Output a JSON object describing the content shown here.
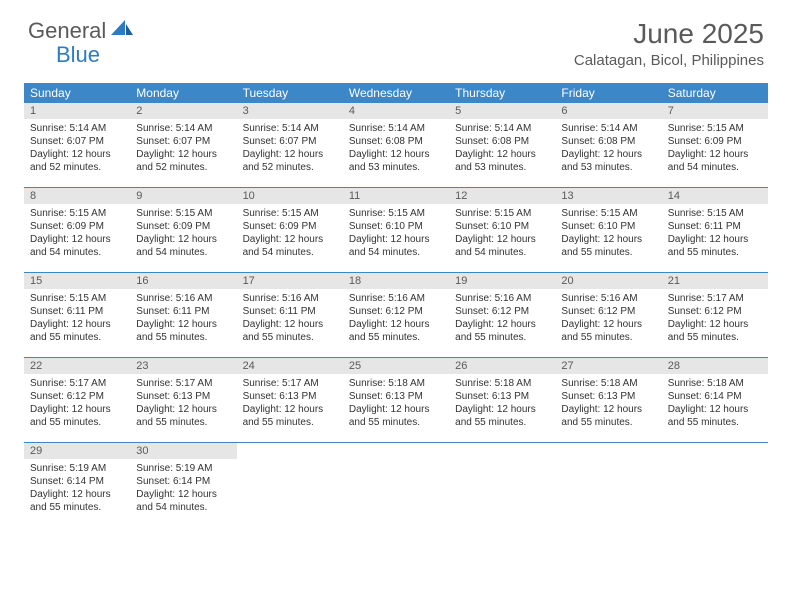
{
  "brand": {
    "part1": "General",
    "part2": "Blue"
  },
  "title": "June 2025",
  "location": "Calatagan, Bicol, Philippines",
  "colors": {
    "header_bg": "#3b87c8",
    "header_text": "#ffffff",
    "daynum_bg": "#e6e6e6",
    "text_gray": "#5a5a5a",
    "brand_blue": "#2f7bbf",
    "row_border": "#3b87c8"
  },
  "day_names": [
    "Sunday",
    "Monday",
    "Tuesday",
    "Wednesday",
    "Thursday",
    "Friday",
    "Saturday"
  ],
  "days": [
    {
      "n": "1",
      "sr": "Sunrise: 5:14 AM",
      "ss": "Sunset: 6:07 PM",
      "d1": "Daylight: 12 hours",
      "d2": "and 52 minutes."
    },
    {
      "n": "2",
      "sr": "Sunrise: 5:14 AM",
      "ss": "Sunset: 6:07 PM",
      "d1": "Daylight: 12 hours",
      "d2": "and 52 minutes."
    },
    {
      "n": "3",
      "sr": "Sunrise: 5:14 AM",
      "ss": "Sunset: 6:07 PM",
      "d1": "Daylight: 12 hours",
      "d2": "and 52 minutes."
    },
    {
      "n": "4",
      "sr": "Sunrise: 5:14 AM",
      "ss": "Sunset: 6:08 PM",
      "d1": "Daylight: 12 hours",
      "d2": "and 53 minutes."
    },
    {
      "n": "5",
      "sr": "Sunrise: 5:14 AM",
      "ss": "Sunset: 6:08 PM",
      "d1": "Daylight: 12 hours",
      "d2": "and 53 minutes."
    },
    {
      "n": "6",
      "sr": "Sunrise: 5:14 AM",
      "ss": "Sunset: 6:08 PM",
      "d1": "Daylight: 12 hours",
      "d2": "and 53 minutes."
    },
    {
      "n": "7",
      "sr": "Sunrise: 5:15 AM",
      "ss": "Sunset: 6:09 PM",
      "d1": "Daylight: 12 hours",
      "d2": "and 54 minutes."
    },
    {
      "n": "8",
      "sr": "Sunrise: 5:15 AM",
      "ss": "Sunset: 6:09 PM",
      "d1": "Daylight: 12 hours",
      "d2": "and 54 minutes."
    },
    {
      "n": "9",
      "sr": "Sunrise: 5:15 AM",
      "ss": "Sunset: 6:09 PM",
      "d1": "Daylight: 12 hours",
      "d2": "and 54 minutes."
    },
    {
      "n": "10",
      "sr": "Sunrise: 5:15 AM",
      "ss": "Sunset: 6:09 PM",
      "d1": "Daylight: 12 hours",
      "d2": "and 54 minutes."
    },
    {
      "n": "11",
      "sr": "Sunrise: 5:15 AM",
      "ss": "Sunset: 6:10 PM",
      "d1": "Daylight: 12 hours",
      "d2": "and 54 minutes."
    },
    {
      "n": "12",
      "sr": "Sunrise: 5:15 AM",
      "ss": "Sunset: 6:10 PM",
      "d1": "Daylight: 12 hours",
      "d2": "and 54 minutes."
    },
    {
      "n": "13",
      "sr": "Sunrise: 5:15 AM",
      "ss": "Sunset: 6:10 PM",
      "d1": "Daylight: 12 hours",
      "d2": "and 55 minutes."
    },
    {
      "n": "14",
      "sr": "Sunrise: 5:15 AM",
      "ss": "Sunset: 6:11 PM",
      "d1": "Daylight: 12 hours",
      "d2": "and 55 minutes."
    },
    {
      "n": "15",
      "sr": "Sunrise: 5:15 AM",
      "ss": "Sunset: 6:11 PM",
      "d1": "Daylight: 12 hours",
      "d2": "and 55 minutes."
    },
    {
      "n": "16",
      "sr": "Sunrise: 5:16 AM",
      "ss": "Sunset: 6:11 PM",
      "d1": "Daylight: 12 hours",
      "d2": "and 55 minutes."
    },
    {
      "n": "17",
      "sr": "Sunrise: 5:16 AM",
      "ss": "Sunset: 6:11 PM",
      "d1": "Daylight: 12 hours",
      "d2": "and 55 minutes."
    },
    {
      "n": "18",
      "sr": "Sunrise: 5:16 AM",
      "ss": "Sunset: 6:12 PM",
      "d1": "Daylight: 12 hours",
      "d2": "and 55 minutes."
    },
    {
      "n": "19",
      "sr": "Sunrise: 5:16 AM",
      "ss": "Sunset: 6:12 PM",
      "d1": "Daylight: 12 hours",
      "d2": "and 55 minutes."
    },
    {
      "n": "20",
      "sr": "Sunrise: 5:16 AM",
      "ss": "Sunset: 6:12 PM",
      "d1": "Daylight: 12 hours",
      "d2": "and 55 minutes."
    },
    {
      "n": "21",
      "sr": "Sunrise: 5:17 AM",
      "ss": "Sunset: 6:12 PM",
      "d1": "Daylight: 12 hours",
      "d2": "and 55 minutes."
    },
    {
      "n": "22",
      "sr": "Sunrise: 5:17 AM",
      "ss": "Sunset: 6:12 PM",
      "d1": "Daylight: 12 hours",
      "d2": "and 55 minutes."
    },
    {
      "n": "23",
      "sr": "Sunrise: 5:17 AM",
      "ss": "Sunset: 6:13 PM",
      "d1": "Daylight: 12 hours",
      "d2": "and 55 minutes."
    },
    {
      "n": "24",
      "sr": "Sunrise: 5:17 AM",
      "ss": "Sunset: 6:13 PM",
      "d1": "Daylight: 12 hours",
      "d2": "and 55 minutes."
    },
    {
      "n": "25",
      "sr": "Sunrise: 5:18 AM",
      "ss": "Sunset: 6:13 PM",
      "d1": "Daylight: 12 hours",
      "d2": "and 55 minutes."
    },
    {
      "n": "26",
      "sr": "Sunrise: 5:18 AM",
      "ss": "Sunset: 6:13 PM",
      "d1": "Daylight: 12 hours",
      "d2": "and 55 minutes."
    },
    {
      "n": "27",
      "sr": "Sunrise: 5:18 AM",
      "ss": "Sunset: 6:13 PM",
      "d1": "Daylight: 12 hours",
      "d2": "and 55 minutes."
    },
    {
      "n": "28",
      "sr": "Sunrise: 5:18 AM",
      "ss": "Sunset: 6:14 PM",
      "d1": "Daylight: 12 hours",
      "d2": "and 55 minutes."
    },
    {
      "n": "29",
      "sr": "Sunrise: 5:19 AM",
      "ss": "Sunset: 6:14 PM",
      "d1": "Daylight: 12 hours",
      "d2": "and 55 minutes."
    },
    {
      "n": "30",
      "sr": "Sunrise: 5:19 AM",
      "ss": "Sunset: 6:14 PM",
      "d1": "Daylight: 12 hours",
      "d2": "and 54 minutes."
    }
  ]
}
